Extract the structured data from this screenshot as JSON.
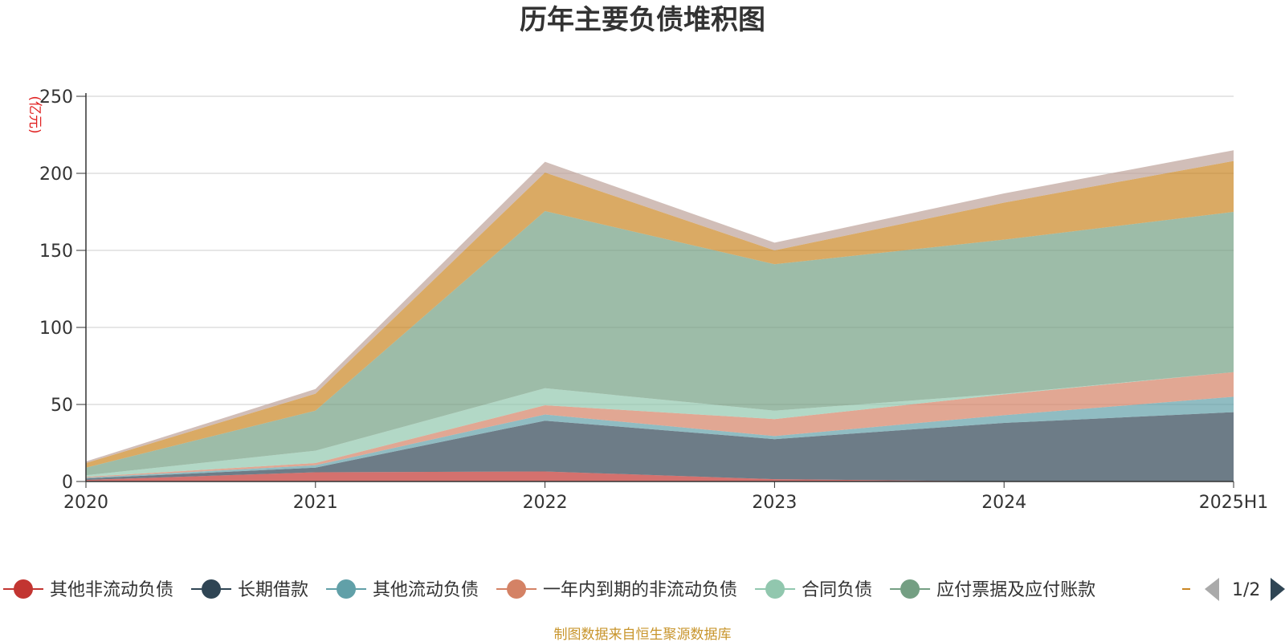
{
  "chart_data": {
    "type": "area",
    "stacked": true,
    "title": "历年主要负债堆积图",
    "y_unit": "(亿元)",
    "x": [
      "2020",
      "2021",
      "2022",
      "2023",
      "2024",
      "2025H1"
    ],
    "ylim": [
      0,
      250
    ],
    "yticks": [
      0,
      50,
      100,
      150,
      200,
      250
    ],
    "grid": true,
    "series": [
      {
        "name": "其他非流动负债",
        "color": "#c23531",
        "values": [
          1,
          6,
          6.5,
          1.5,
          0,
          0
        ]
      },
      {
        "name": "长期借款",
        "color": "#2f4554",
        "values": [
          1,
          3,
          33,
          26,
          38,
          45
        ]
      },
      {
        "name": "其他流动负债",
        "color": "#61a0a8",
        "values": [
          0.5,
          1.5,
          4,
          2,
          5,
          10
        ]
      },
      {
        "name": "一年内到期的非流动负债",
        "color": "#d48265",
        "values": [
          0.5,
          1.5,
          6,
          11,
          13.5,
          16
        ]
      },
      {
        "name": "合同负债",
        "color": "#91c7ae",
        "values": [
          1,
          8,
          11,
          5.5,
          0.5,
          0
        ]
      },
      {
        "name": "应付票据及应付账款",
        "color": "#749f83",
        "values": [
          5,
          26,
          115,
          95,
          100,
          104
        ]
      },
      {
        "name": "",
        "color": "#ca8622",
        "values": [
          3,
          11,
          25,
          9,
          24,
          33
        ]
      },
      {
        "name": "",
        "color": "#bda29a",
        "values": [
          1,
          3,
          7,
          5,
          6,
          7
        ]
      }
    ]
  },
  "legend": {
    "page": "1/2",
    "prev_color": "#aaaaaa",
    "next_color": "#2f4554"
  },
  "source": "制图数据来自恒生聚源数据库"
}
